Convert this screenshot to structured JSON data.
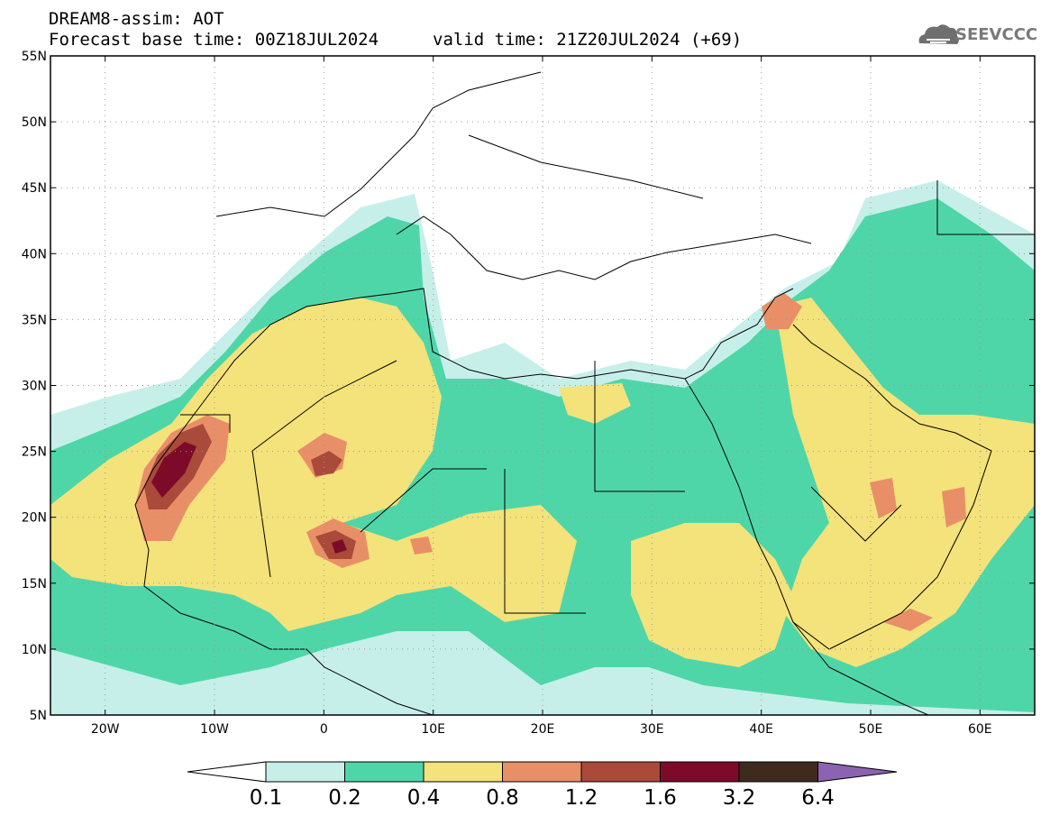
{
  "header": {
    "title": "DREAM8-assim: AOT",
    "base_time": "Forecast base time: 00Z18JUL2024",
    "valid_time": "valid time: 21Z20JUL2024 (+69)"
  },
  "logo": {
    "text": "SEEVCCC",
    "icon": "cloud-icon"
  },
  "map": {
    "lat_labels": [
      "55N",
      "50N",
      "45N",
      "40N",
      "35N",
      "30N",
      "25N",
      "20N",
      "15N",
      "10N",
      "5N"
    ],
    "lon_labels": [
      "20W",
      "10W",
      "0",
      "10E",
      "20E",
      "30E",
      "40E",
      "50E",
      "60E"
    ],
    "lon_range": [
      -25,
      65
    ],
    "lat_range": [
      5,
      55
    ]
  },
  "colorbar": {
    "labels": [
      "0.1",
      "0.2",
      "0.4",
      "0.8",
      "1.2",
      "1.6",
      "3.2",
      "6.4"
    ],
    "colors": [
      "#c7efea",
      "#4fd6a8",
      "#f4e27a",
      "#e88f68",
      "#a94a3a",
      "#7c0a28",
      "#3f2a1e",
      "#8c63b0"
    ]
  }
}
